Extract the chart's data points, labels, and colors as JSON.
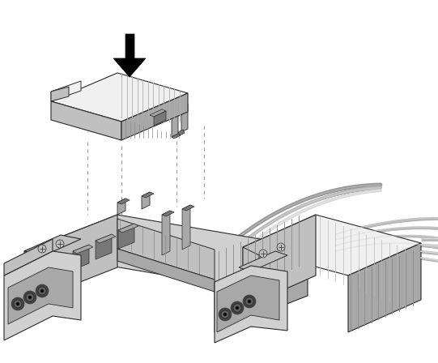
{
  "background_color": "#ffffff",
  "figure_width": 5.41,
  "figure_height": 4.48,
  "dpi": 100,
  "colors": {
    "white": "#ffffff",
    "very_light": "#f0f0f0",
    "light_gray": "#d0d0d0",
    "light_mid": "#c0c0c0",
    "mid_gray": "#a8a8a8",
    "dark_mid": "#909090",
    "dark_gray": "#787878",
    "darker_gray": "#606060",
    "darkest_gray": "#404040",
    "black": "#000000",
    "outline": "#2a2a2a",
    "dashed_line": "#999999",
    "hatch_color": "#888888",
    "cable_light": "#d8d8d8",
    "cable_mid": "#b8b8b8",
    "cable_dark": "#989898"
  }
}
